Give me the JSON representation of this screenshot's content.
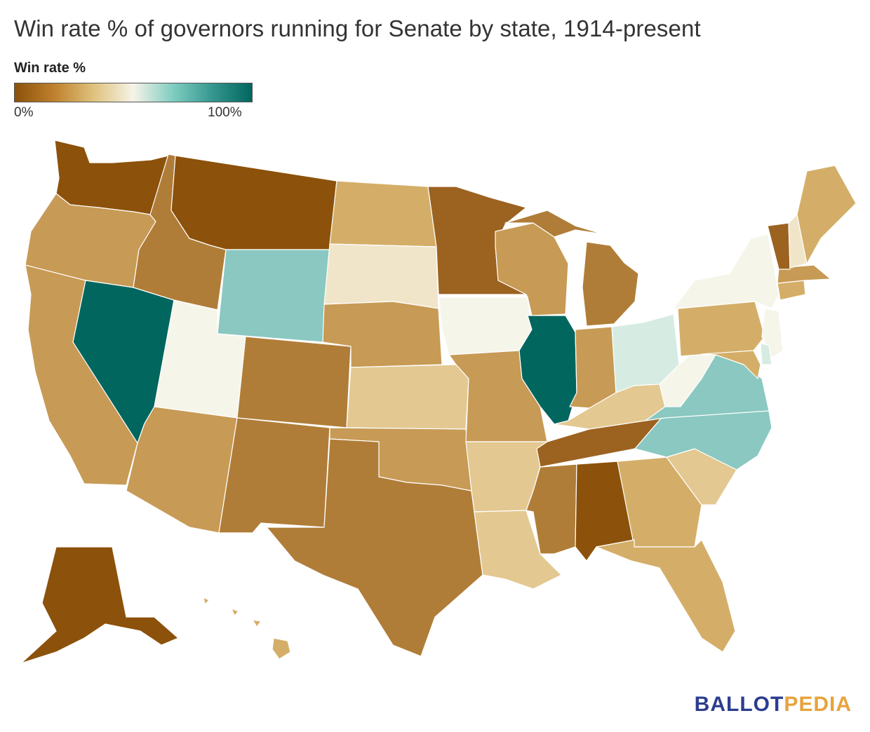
{
  "title": "Win rate % of governors running for Senate by state, 1914-present",
  "legend": {
    "title": "Win rate %",
    "min_label": "0%",
    "max_label": "100%",
    "gradient": [
      "#8c510a",
      "#bf812d",
      "#dfc27d",
      "#f6f3e8",
      "#80cdc1",
      "#35978f",
      "#01665e"
    ]
  },
  "colors": {
    "dark_brown": "#8c510a",
    "brown": "#9c6220",
    "mid_brown": "#b07d38",
    "tan": "#c79a55",
    "light_tan": "#d4ae68",
    "sand": "#e3c891",
    "pale_sand": "#f1e5c9",
    "cream": "#f6f5ea",
    "pale_teal": "#d6ece2",
    "teal": "#8ac8c1",
    "dark_teal": "#01665e"
  },
  "states": {
    "WA": "dark_brown",
    "OR": "tan",
    "CA": "tan",
    "NV": "dark_teal",
    "ID": "mid_brown",
    "MT": "dark_brown",
    "WY": "teal",
    "UT": "cream",
    "AZ": "tan",
    "CO": "mid_brown",
    "NM": "mid_brown",
    "ND": "light_tan",
    "SD": "pale_sand",
    "NE": "tan",
    "KS": "sand",
    "OK": "tan",
    "TX": "mid_brown",
    "MN": "brown",
    "IA": "cream",
    "MO": "tan",
    "AR": "sand",
    "LA": "sand",
    "WI": "tan",
    "IL": "dark_teal",
    "MI": "mid_brown",
    "IN": "tan",
    "OH": "pale_teal",
    "KY": "sand",
    "TN": "brown",
    "MS": "mid_brown",
    "AL": "dark_brown",
    "GA": "light_tan",
    "FL": "light_tan",
    "SC": "sand",
    "NC": "teal",
    "VA": "teal",
    "WV": "cream",
    "PA": "light_tan",
    "NY": "cream",
    "VT": "brown",
    "NH": "pale_sand",
    "ME": "light_tan",
    "MA": "tan",
    "CT": "light_tan",
    "NJ": "cream",
    "DE": "pale_teal",
    "MD": "light_tan",
    "AK": "dark_brown",
    "HI": "light_tan"
  },
  "brand": {
    "part1": "BALLOT",
    "part2": "PEDIA",
    "color1": "#2c3d8f",
    "color2": "#e8a33d"
  }
}
